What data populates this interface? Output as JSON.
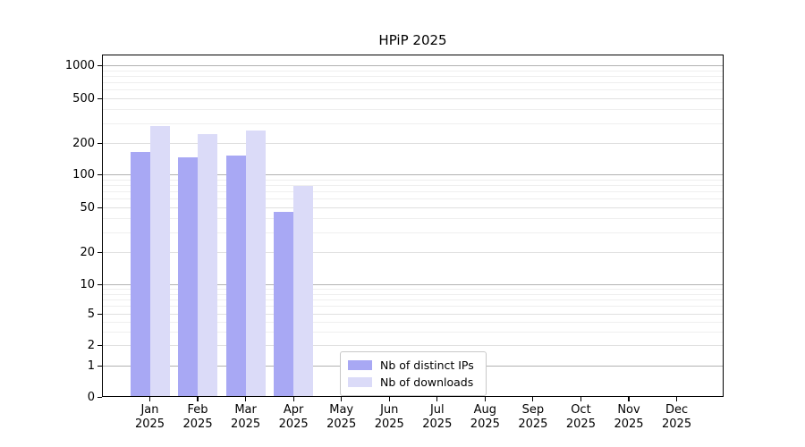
{
  "chart_data": {
    "type": "bar",
    "title": "HPiP 2025",
    "categories": [
      "Jan",
      "Feb",
      "Mar",
      "Apr",
      "May",
      "Jun",
      "Jul",
      "Aug",
      "Sep",
      "Oct",
      "Nov",
      "Dec"
    ],
    "year_label": "2025",
    "series": [
      {
        "name": "Nb of distinct IPs",
        "color": "#a8a8f4",
        "values": [
          163,
          146,
          151,
          46,
          null,
          null,
          null,
          null,
          null,
          null,
          null,
          null
        ]
      },
      {
        "name": "Nb of downloads",
        "color": "#dbdbf8",
        "values": [
          285,
          240,
          257,
          78,
          null,
          null,
          null,
          null,
          null,
          null,
          null,
          null
        ]
      }
    ],
    "y_ticks": [
      0,
      1,
      2,
      5,
      10,
      20,
      50,
      100,
      200,
      500,
      1000
    ],
    "y_scale": "symlog",
    "ylim": [
      0,
      1250
    ],
    "grid": "horizontal",
    "legend_position": "lower-center"
  }
}
